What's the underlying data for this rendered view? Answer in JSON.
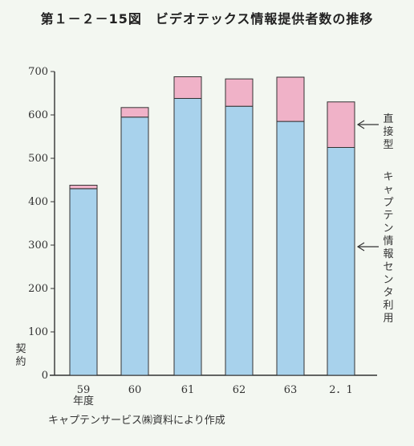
{
  "title": "第１－２－15図　ビデオテックス情報提供者数の推移",
  "source": "キャプテンサービス㈱資料により作成",
  "chart_data": {
    "type": "bar",
    "stacked": true,
    "categories": [
      "59",
      "60",
      "61",
      "62",
      "63",
      "2．1"
    ],
    "x_unit_label": "年度",
    "y_unit_label": "契約",
    "ylim": [
      0,
      700
    ],
    "yticks": [
      0,
      100,
      200,
      300,
      400,
      500,
      600,
      700
    ],
    "grid": false,
    "series": [
      {
        "name": "キャプテン情報センタ利用",
        "values": [
          430,
          595,
          638,
          620,
          585,
          525
        ],
        "color": "#a8d2ec"
      },
      {
        "name": "直接型",
        "values": [
          8,
          22,
          50,
          63,
          102,
          105
        ],
        "color": "#f0b2c8"
      }
    ]
  }
}
